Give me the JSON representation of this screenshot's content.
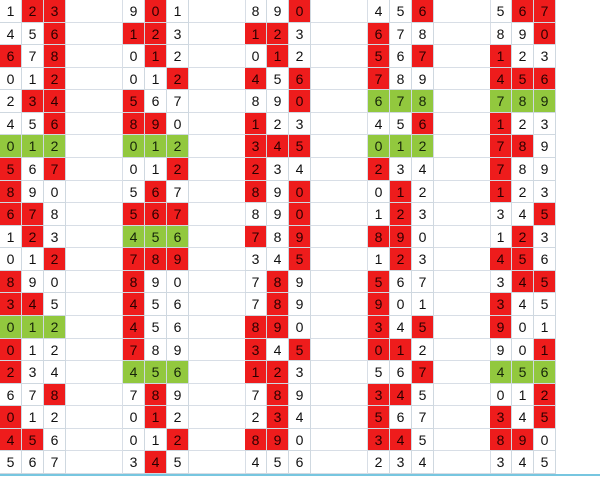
{
  "colors": {
    "hot": "#ee1c1c",
    "special": "#92c83e",
    "plain": "#ffffff",
    "rule": "#77c6e0"
  },
  "blocks": [
    {
      "rows": [
        [
          "1",
          "2",
          "3"
        ],
        [
          "4",
          "5",
          "6"
        ],
        [
          "6",
          "7",
          "8"
        ],
        [
          "0",
          "1",
          "2"
        ],
        [
          "2",
          "3",
          "4"
        ],
        [
          "4",
          "5",
          "6"
        ],
        [
          "0",
          "1",
          "2"
        ],
        [
          "5",
          "6",
          "7"
        ],
        [
          "8",
          "9",
          "0"
        ],
        [
          "6",
          "7",
          "8"
        ],
        [
          "1",
          "2",
          "3"
        ],
        [
          "0",
          "1",
          "2"
        ],
        [
          "8",
          "9",
          "0"
        ],
        [
          "3",
          "4",
          "5"
        ],
        [
          "0",
          "1",
          "2"
        ],
        [
          "0",
          "1",
          "2"
        ],
        [
          "2",
          "3",
          "4"
        ],
        [
          "6",
          "7",
          "8"
        ],
        [
          "0",
          "1",
          "2"
        ],
        [
          "4",
          "5",
          "6"
        ],
        [
          "5",
          "6",
          "7"
        ]
      ],
      "marks": [
        [
          "w",
          "r",
          "r"
        ],
        [
          "w",
          "w",
          "r"
        ],
        [
          "r",
          "w",
          "r"
        ],
        [
          "w",
          "w",
          "r"
        ],
        [
          "w",
          "r",
          "r"
        ],
        [
          "w",
          "w",
          "r"
        ],
        [
          "g",
          "g",
          "g"
        ],
        [
          "r",
          "w",
          "r"
        ],
        [
          "r",
          "w",
          "w"
        ],
        [
          "r",
          "r",
          "w"
        ],
        [
          "w",
          "r",
          "w"
        ],
        [
          "w",
          "w",
          "r"
        ],
        [
          "r",
          "w",
          "w"
        ],
        [
          "r",
          "r",
          "w"
        ],
        [
          "g",
          "g",
          "g"
        ],
        [
          "r",
          "w",
          "w"
        ],
        [
          "r",
          "w",
          "w"
        ],
        [
          "w",
          "w",
          "r"
        ],
        [
          "r",
          "w",
          "w"
        ],
        [
          "r",
          "r",
          "w"
        ],
        [
          "w",
          "w",
          "w"
        ]
      ]
    },
    {
      "rows": [
        [
          "9",
          "0",
          "1"
        ],
        [
          "1",
          "2",
          "3"
        ],
        [
          "0",
          "1",
          "2"
        ],
        [
          "0",
          "1",
          "2"
        ],
        [
          "5",
          "6",
          "7"
        ],
        [
          "8",
          "9",
          "0"
        ],
        [
          "0",
          "1",
          "2"
        ],
        [
          "0",
          "1",
          "2"
        ],
        [
          "5",
          "6",
          "7"
        ],
        [
          "5",
          "6",
          "7"
        ],
        [
          "4",
          "5",
          "6"
        ],
        [
          "7",
          "8",
          "9"
        ],
        [
          "8",
          "9",
          "0"
        ],
        [
          "4",
          "5",
          "6"
        ],
        [
          "4",
          "5",
          "6"
        ],
        [
          "7",
          "8",
          "9"
        ],
        [
          "4",
          "5",
          "6"
        ],
        [
          "7",
          "8",
          "9"
        ],
        [
          "0",
          "1",
          "2"
        ],
        [
          "0",
          "1",
          "2"
        ],
        [
          "3",
          "4",
          "5"
        ]
      ],
      "marks": [
        [
          "w",
          "r",
          "w"
        ],
        [
          "r",
          "r",
          "w"
        ],
        [
          "w",
          "r",
          "w"
        ],
        [
          "w",
          "w",
          "r"
        ],
        [
          "r",
          "w",
          "w"
        ],
        [
          "r",
          "r",
          "w"
        ],
        [
          "g",
          "g",
          "g"
        ],
        [
          "w",
          "w",
          "r"
        ],
        [
          "w",
          "r",
          "w"
        ],
        [
          "r",
          "r",
          "r"
        ],
        [
          "g",
          "g",
          "g"
        ],
        [
          "r",
          "r",
          "r"
        ],
        [
          "r",
          "w",
          "w"
        ],
        [
          "r",
          "w",
          "w"
        ],
        [
          "r",
          "w",
          "w"
        ],
        [
          "r",
          "w",
          "w"
        ],
        [
          "g",
          "g",
          "g"
        ],
        [
          "w",
          "r",
          "w"
        ],
        [
          "w",
          "r",
          "w"
        ],
        [
          "w",
          "w",
          "r"
        ],
        [
          "w",
          "r",
          "w"
        ]
      ]
    },
    {
      "rows": [
        [
          "8",
          "9",
          "0"
        ],
        [
          "1",
          "2",
          "3"
        ],
        [
          "0",
          "1",
          "2"
        ],
        [
          "4",
          "5",
          "6"
        ],
        [
          "8",
          "9",
          "0"
        ],
        [
          "1",
          "2",
          "3"
        ],
        [
          "3",
          "4",
          "5"
        ],
        [
          "2",
          "3",
          "4"
        ],
        [
          "8",
          "9",
          "0"
        ],
        [
          "8",
          "9",
          "0"
        ],
        [
          "7",
          "8",
          "9"
        ],
        [
          "3",
          "4",
          "5"
        ],
        [
          "7",
          "8",
          "9"
        ],
        [
          "7",
          "8",
          "9"
        ],
        [
          "8",
          "9",
          "0"
        ],
        [
          "3",
          "4",
          "5"
        ],
        [
          "1",
          "2",
          "3"
        ],
        [
          "7",
          "8",
          "9"
        ],
        [
          "2",
          "3",
          "4"
        ],
        [
          "8",
          "9",
          "0"
        ],
        [
          "4",
          "5",
          "6"
        ]
      ],
      "marks": [
        [
          "w",
          "w",
          "r"
        ],
        [
          "r",
          "r",
          "w"
        ],
        [
          "w",
          "r",
          "w"
        ],
        [
          "r",
          "w",
          "r"
        ],
        [
          "w",
          "w",
          "r"
        ],
        [
          "r",
          "w",
          "w"
        ],
        [
          "r",
          "r",
          "r"
        ],
        [
          "r",
          "w",
          "w"
        ],
        [
          "r",
          "w",
          "r"
        ],
        [
          "w",
          "w",
          "r"
        ],
        [
          "r",
          "w",
          "r"
        ],
        [
          "w",
          "w",
          "r"
        ],
        [
          "w",
          "r",
          "w"
        ],
        [
          "w",
          "r",
          "w"
        ],
        [
          "r",
          "r",
          "w"
        ],
        [
          "r",
          "w",
          "r"
        ],
        [
          "r",
          "r",
          "w"
        ],
        [
          "w",
          "r",
          "w"
        ],
        [
          "w",
          "r",
          "w"
        ],
        [
          "r",
          "r",
          "w"
        ],
        [
          "w",
          "w",
          "w"
        ]
      ]
    },
    {
      "rows": [
        [
          "4",
          "5",
          "6"
        ],
        [
          "6",
          "7",
          "8"
        ],
        [
          "5",
          "6",
          "7"
        ],
        [
          "7",
          "8",
          "9"
        ],
        [
          "6",
          "7",
          "8"
        ],
        [
          "4",
          "5",
          "6"
        ],
        [
          "0",
          "1",
          "2"
        ],
        [
          "2",
          "3",
          "4"
        ],
        [
          "0",
          "1",
          "2"
        ],
        [
          "1",
          "2",
          "3"
        ],
        [
          "8",
          "9",
          "0"
        ],
        [
          "1",
          "2",
          "3"
        ],
        [
          "5",
          "6",
          "7"
        ],
        [
          "9",
          "0",
          "1"
        ],
        [
          "3",
          "4",
          "5"
        ],
        [
          "0",
          "1",
          "2"
        ],
        [
          "5",
          "6",
          "7"
        ],
        [
          "3",
          "4",
          "5"
        ],
        [
          "5",
          "6",
          "7"
        ],
        [
          "3",
          "4",
          "5"
        ],
        [
          "2",
          "3",
          "4"
        ]
      ],
      "marks": [
        [
          "w",
          "w",
          "r"
        ],
        [
          "r",
          "w",
          "w"
        ],
        [
          "r",
          "w",
          "r"
        ],
        [
          "r",
          "w",
          "w"
        ],
        [
          "g",
          "g",
          "g"
        ],
        [
          "w",
          "w",
          "r"
        ],
        [
          "g",
          "g",
          "g"
        ],
        [
          "r",
          "w",
          "w"
        ],
        [
          "w",
          "r",
          "w"
        ],
        [
          "w",
          "r",
          "w"
        ],
        [
          "r",
          "r",
          "w"
        ],
        [
          "w",
          "r",
          "w"
        ],
        [
          "r",
          "w",
          "w"
        ],
        [
          "r",
          "w",
          "w"
        ],
        [
          "r",
          "w",
          "r"
        ],
        [
          "r",
          "r",
          "w"
        ],
        [
          "w",
          "w",
          "r"
        ],
        [
          "r",
          "r",
          "w"
        ],
        [
          "r",
          "w",
          "w"
        ],
        [
          "r",
          "r",
          "w"
        ],
        [
          "w",
          "w",
          "w"
        ]
      ]
    },
    {
      "rows": [
        [
          "5",
          "6",
          "7"
        ],
        [
          "8",
          "9",
          "0"
        ],
        [
          "1",
          "2",
          "3"
        ],
        [
          "4",
          "5",
          "6"
        ],
        [
          "7",
          "8",
          "9"
        ],
        [
          "1",
          "2",
          "3"
        ],
        [
          "7",
          "8",
          "9"
        ],
        [
          "7",
          "8",
          "9"
        ],
        [
          "1",
          "2",
          "3"
        ],
        [
          "3",
          "4",
          "5"
        ],
        [
          "1",
          "2",
          "3"
        ],
        [
          "4",
          "5",
          "6"
        ],
        [
          "3",
          "4",
          "5"
        ],
        [
          "3",
          "4",
          "5"
        ],
        [
          "9",
          "0",
          "1"
        ],
        [
          "9",
          "0",
          "1"
        ],
        [
          "4",
          "5",
          "6"
        ],
        [
          "0",
          "1",
          "2"
        ],
        [
          "3",
          "4",
          "5"
        ],
        [
          "8",
          "9",
          "0"
        ],
        [
          "3",
          "4",
          "5"
        ]
      ],
      "marks": [
        [
          "w",
          "r",
          "r"
        ],
        [
          "w",
          "w",
          "r"
        ],
        [
          "r",
          "w",
          "w"
        ],
        [
          "r",
          "r",
          "r"
        ],
        [
          "g",
          "g",
          "g"
        ],
        [
          "r",
          "w",
          "w"
        ],
        [
          "r",
          "r",
          "w"
        ],
        [
          "r",
          "w",
          "w"
        ],
        [
          "r",
          "w",
          "w"
        ],
        [
          "w",
          "w",
          "r"
        ],
        [
          "w",
          "r",
          "w"
        ],
        [
          "r",
          "r",
          "w"
        ],
        [
          "w",
          "r",
          "r"
        ],
        [
          "r",
          "w",
          "w"
        ],
        [
          "r",
          "w",
          "w"
        ],
        [
          "w",
          "w",
          "r"
        ],
        [
          "g",
          "g",
          "g"
        ],
        [
          "w",
          "w",
          "r"
        ],
        [
          "r",
          "w",
          "r"
        ],
        [
          "r",
          "r",
          "w"
        ],
        [
          "w",
          "w",
          "w"
        ]
      ]
    }
  ]
}
